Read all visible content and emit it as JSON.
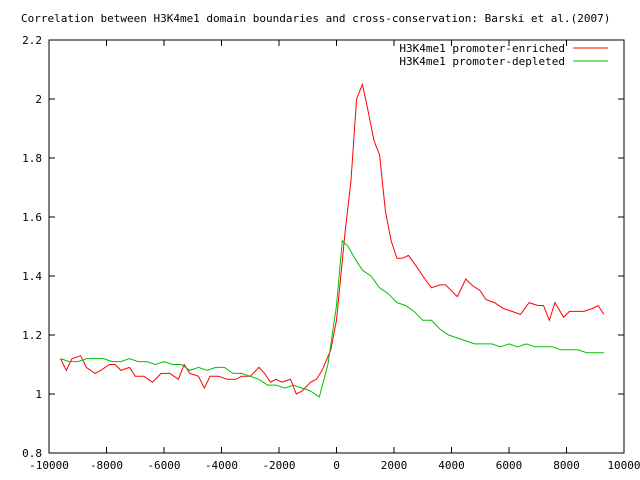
{
  "chart_data": {
    "type": "line",
    "title": "Correlation between H3K4me1 domain boundaries and cross-conservation: Barski et al.(2007)",
    "xlabel": "",
    "ylabel": "",
    "xlim": [
      -10000,
      10000
    ],
    "ylim": [
      0.8,
      2.2
    ],
    "x_ticks": [
      -10000,
      -8000,
      -6000,
      -4000,
      -2000,
      0,
      2000,
      4000,
      6000,
      8000,
      10000
    ],
    "x_tick_labels": [
      "-10000",
      "-8000",
      "-6000",
      "-4000",
      "-2000",
      "0",
      "2000",
      "4000",
      "6000",
      "8000",
      "10000"
    ],
    "y_ticks": [
      0.8,
      1.0,
      1.2,
      1.4,
      1.6,
      1.8,
      2.0,
      2.2
    ],
    "y_tick_labels": [
      "0.8",
      "1",
      "1.2",
      "1.4",
      "1.6",
      "1.8",
      "2",
      "2.2"
    ],
    "grid": false,
    "legend_position": "top-right",
    "series": [
      {
        "name": "H3K4me1 promoter-enriched",
        "color": "#ff0000",
        "points": [
          [
            -9600,
            1.12
          ],
          [
            -9400,
            1.08
          ],
          [
            -9200,
            1.12
          ],
          [
            -8900,
            1.13
          ],
          [
            -8700,
            1.09
          ],
          [
            -8400,
            1.07
          ],
          [
            -8200,
            1.08
          ],
          [
            -7900,
            1.1
          ],
          [
            -7700,
            1.1
          ],
          [
            -7500,
            1.08
          ],
          [
            -7200,
            1.09
          ],
          [
            -7000,
            1.06
          ],
          [
            -6700,
            1.06
          ],
          [
            -6400,
            1.04
          ],
          [
            -6100,
            1.07
          ],
          [
            -5800,
            1.07
          ],
          [
            -5500,
            1.05
          ],
          [
            -5300,
            1.1
          ],
          [
            -5100,
            1.07
          ],
          [
            -4800,
            1.06
          ],
          [
            -4600,
            1.02
          ],
          [
            -4400,
            1.06
          ],
          [
            -4100,
            1.06
          ],
          [
            -3800,
            1.05
          ],
          [
            -3500,
            1.05
          ],
          [
            -3300,
            1.06
          ],
          [
            -3000,
            1.06
          ],
          [
            -2700,
            1.09
          ],
          [
            -2500,
            1.07
          ],
          [
            -2300,
            1.04
          ],
          [
            -2100,
            1.05
          ],
          [
            -1900,
            1.04
          ],
          [
            -1600,
            1.05
          ],
          [
            -1400,
            1.0
          ],
          [
            -1200,
            1.01
          ],
          [
            -900,
            1.04
          ],
          [
            -700,
            1.05
          ],
          [
            -500,
            1.08
          ],
          [
            -200,
            1.15
          ],
          [
            0,
            1.25
          ],
          [
            300,
            1.55
          ],
          [
            500,
            1.72
          ],
          [
            700,
            2.0
          ],
          [
            900,
            2.05
          ],
          [
            1100,
            1.96
          ],
          [
            1300,
            1.86
          ],
          [
            1500,
            1.81
          ],
          [
            1700,
            1.62
          ],
          [
            1900,
            1.52
          ],
          [
            2100,
            1.46
          ],
          [
            2300,
            1.46
          ],
          [
            2500,
            1.47
          ],
          [
            2800,
            1.43
          ],
          [
            3000,
            1.4
          ],
          [
            3300,
            1.36
          ],
          [
            3600,
            1.37
          ],
          [
            3800,
            1.37
          ],
          [
            4000,
            1.35
          ],
          [
            4200,
            1.33
          ],
          [
            4500,
            1.39
          ],
          [
            4700,
            1.37
          ],
          [
            5000,
            1.35
          ],
          [
            5200,
            1.32
          ],
          [
            5500,
            1.31
          ],
          [
            5800,
            1.29
          ],
          [
            6100,
            1.28
          ],
          [
            6400,
            1.27
          ],
          [
            6700,
            1.31
          ],
          [
            7000,
            1.3
          ],
          [
            7200,
            1.3
          ],
          [
            7400,
            1.25
          ],
          [
            7600,
            1.31
          ],
          [
            7900,
            1.26
          ],
          [
            8100,
            1.28
          ],
          [
            8400,
            1.28
          ],
          [
            8600,
            1.28
          ],
          [
            8900,
            1.29
          ],
          [
            9100,
            1.3
          ],
          [
            9300,
            1.27
          ]
        ]
      },
      {
        "name": "H3K4me1 promoter-depleted",
        "color": "#00c000",
        "points": [
          [
            -9600,
            1.12
          ],
          [
            -9300,
            1.11
          ],
          [
            -9000,
            1.11
          ],
          [
            -8700,
            1.12
          ],
          [
            -8400,
            1.12
          ],
          [
            -8100,
            1.12
          ],
          [
            -7800,
            1.11
          ],
          [
            -7500,
            1.11
          ],
          [
            -7200,
            1.12
          ],
          [
            -6900,
            1.11
          ],
          [
            -6600,
            1.11
          ],
          [
            -6300,
            1.1
          ],
          [
            -6000,
            1.11
          ],
          [
            -5700,
            1.1
          ],
          [
            -5400,
            1.1
          ],
          [
            -5100,
            1.08
          ],
          [
            -4800,
            1.09
          ],
          [
            -4500,
            1.08
          ],
          [
            -4200,
            1.09
          ],
          [
            -3900,
            1.09
          ],
          [
            -3600,
            1.07
          ],
          [
            -3300,
            1.07
          ],
          [
            -3000,
            1.06
          ],
          [
            -2700,
            1.05
          ],
          [
            -2400,
            1.03
          ],
          [
            -2100,
            1.03
          ],
          [
            -1800,
            1.02
          ],
          [
            -1500,
            1.03
          ],
          [
            -1200,
            1.02
          ],
          [
            -900,
            1.01
          ],
          [
            -600,
            0.99
          ],
          [
            -300,
            1.1
          ],
          [
            0,
            1.3
          ],
          [
            200,
            1.52
          ],
          [
            400,
            1.5
          ],
          [
            700,
            1.45
          ],
          [
            900,
            1.42
          ],
          [
            1200,
            1.4
          ],
          [
            1500,
            1.36
          ],
          [
            1800,
            1.34
          ],
          [
            2100,
            1.31
          ],
          [
            2400,
            1.3
          ],
          [
            2700,
            1.28
          ],
          [
            3000,
            1.25
          ],
          [
            3300,
            1.25
          ],
          [
            3600,
            1.22
          ],
          [
            3900,
            1.2
          ],
          [
            4200,
            1.19
          ],
          [
            4500,
            1.18
          ],
          [
            4800,
            1.17
          ],
          [
            5100,
            1.17
          ],
          [
            5400,
            1.17
          ],
          [
            5700,
            1.16
          ],
          [
            6000,
            1.17
          ],
          [
            6300,
            1.16
          ],
          [
            6600,
            1.17
          ],
          [
            6900,
            1.16
          ],
          [
            7200,
            1.16
          ],
          [
            7500,
            1.16
          ],
          [
            7800,
            1.15
          ],
          [
            8100,
            1.15
          ],
          [
            8400,
            1.15
          ],
          [
            8700,
            1.14
          ],
          [
            9000,
            1.14
          ],
          [
            9300,
            1.14
          ]
        ]
      }
    ]
  }
}
